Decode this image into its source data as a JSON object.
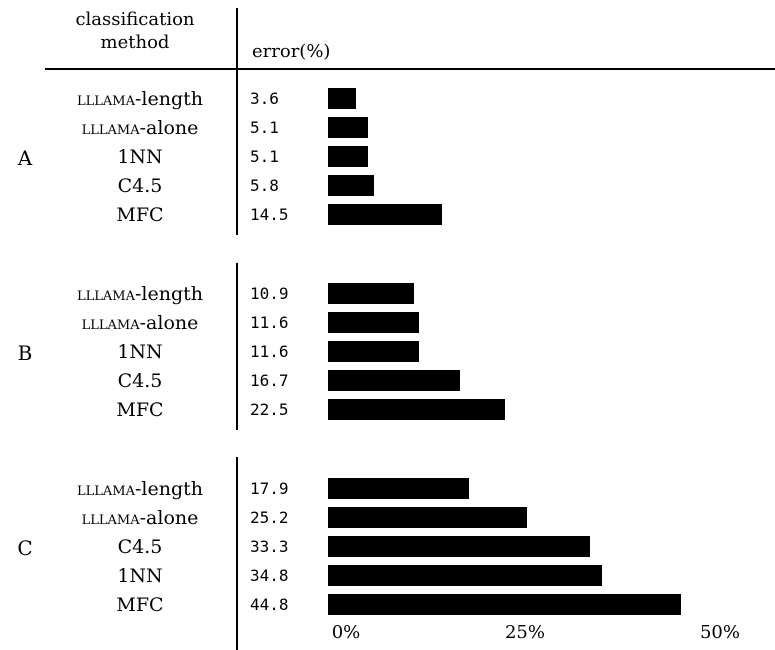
{
  "header": {
    "method_line1": "classification",
    "method_line2": "method",
    "error": "error(%)"
  },
  "chart_data": {
    "type": "bar",
    "xlim": [
      0,
      50
    ],
    "xtick_labels": [
      "0%",
      "25%",
      "50%"
    ],
    "xticks": [
      0,
      25,
      50
    ],
    "groups": [
      {
        "label": "A",
        "methods": [
          "LLLAMA-length",
          "LLLAMA-alone",
          "1NN",
          "C4.5",
          "MFC"
        ],
        "values": [
          3.6,
          5.1,
          5.1,
          5.8,
          14.5
        ],
        "value_labels": [
          "3.6",
          "5.1",
          "5.1",
          "5.8",
          "14.5"
        ]
      },
      {
        "label": "B",
        "methods": [
          "LLLAMA-length",
          "LLLAMA-alone",
          "1NN",
          "C4.5",
          "MFC"
        ],
        "values": [
          10.9,
          11.6,
          11.6,
          16.7,
          22.5
        ],
        "value_labels": [
          "10.9",
          "11.6",
          "11.6",
          "16.7",
          "22.5"
        ]
      },
      {
        "label": "C",
        "methods": [
          "LLLAMA-length",
          "LLLAMA-alone",
          "C4.5",
          "1NN",
          "MFC"
        ],
        "values": [
          17.9,
          25.2,
          33.3,
          34.8,
          44.8
        ],
        "value_labels": [
          "17.9",
          "25.2",
          "33.3",
          "34.8",
          "44.8"
        ]
      }
    ]
  }
}
